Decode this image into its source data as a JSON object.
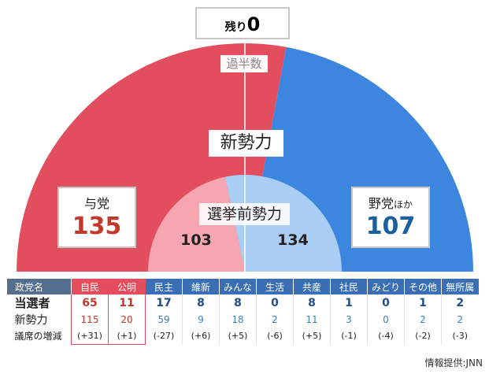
{
  "chart_data": {
    "type": "semicircle-seat",
    "remaining": {
      "label": "残り",
      "value": "0"
    },
    "majority_label": "過半数",
    "outer": {
      "title": "新勢力",
      "ruling": {
        "label": "与党",
        "value": 135
      },
      "opposition": {
        "label": "野党",
        "suffix": "ほか",
        "value": 107
      }
    },
    "inner": {
      "title": "選挙前勢力",
      "ruling_value": 103,
      "opposition_value": 134
    },
    "colors": {
      "ruling": "#e34e5e",
      "opposition": "#3d86df",
      "ruling_inner": "#f5a6b0",
      "opposition_inner": "#a9cdf3"
    }
  },
  "table": {
    "header_label": "政党名",
    "row_labels": [
      "当選者",
      "新勢力",
      "議席の増減"
    ],
    "parties": [
      {
        "name": "自民",
        "ruling": true,
        "elected": "65",
        "new": "115",
        "change": "(+31)"
      },
      {
        "name": "公明",
        "ruling": true,
        "elected": "11",
        "new": "20",
        "change": "(+1)"
      },
      {
        "name": "民主",
        "ruling": false,
        "elected": "17",
        "new": "59",
        "change": "(-27)"
      },
      {
        "name": "維新",
        "ruling": false,
        "elected": "8",
        "new": "9",
        "change": "(+6)"
      },
      {
        "name": "みんな",
        "ruling": false,
        "elected": "8",
        "new": "18",
        "change": "(+5)"
      },
      {
        "name": "生活",
        "ruling": false,
        "elected": "0",
        "new": "2",
        "change": "(-6)"
      },
      {
        "name": "共産",
        "ruling": false,
        "elected": "8",
        "new": "11",
        "change": "(+5)"
      },
      {
        "name": "社民",
        "ruling": false,
        "elected": "1",
        "new": "3",
        "change": "(-1)"
      },
      {
        "name": "みどり",
        "ruling": false,
        "elected": "0",
        "new": "0",
        "change": "(-4)"
      },
      {
        "name": "その他",
        "ruling": false,
        "elected": "1",
        "new": "2",
        "change": "(-2)"
      },
      {
        "name": "無所属",
        "ruling": false,
        "elected": "2",
        "new": "2",
        "change": "(-3)"
      }
    ]
  },
  "credit": "情報提供:JNN"
}
